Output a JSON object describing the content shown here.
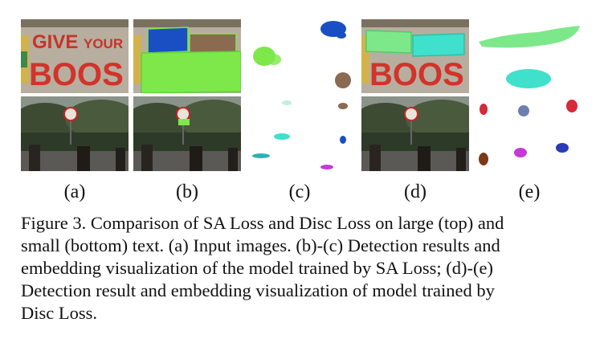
{
  "figure": {
    "column_labels": [
      "(a)",
      "(b)",
      "(c)",
      "(d)",
      "(e)"
    ],
    "scene_text": {
      "word1": "GIVE",
      "word2": "YOUR",
      "word3": "BOOS"
    },
    "caption_lines": [
      "Figure 3. Comparison of SA Loss and Disc Loss on large (top) and",
      "small (bottom) text. (a) Input images. (b)-(c) Detection results and",
      "embedding visualization of the model trained by SA Loss; (d)-(e)",
      "Detection result and embedding visualization of model trained by",
      "Disc Loss."
    ]
  },
  "colors": {
    "green": "#7ee84a",
    "blue": "#1a4fc4",
    "brown": "#8a6a50",
    "cyan": "#3fe0cc",
    "light_green": "#7de88a",
    "red": "#d42a3a",
    "purple": "#c43ad8",
    "slate": "#6b7fb0",
    "dark_brown": "#7a3a1a",
    "navy": "#2a3ab8"
  }
}
